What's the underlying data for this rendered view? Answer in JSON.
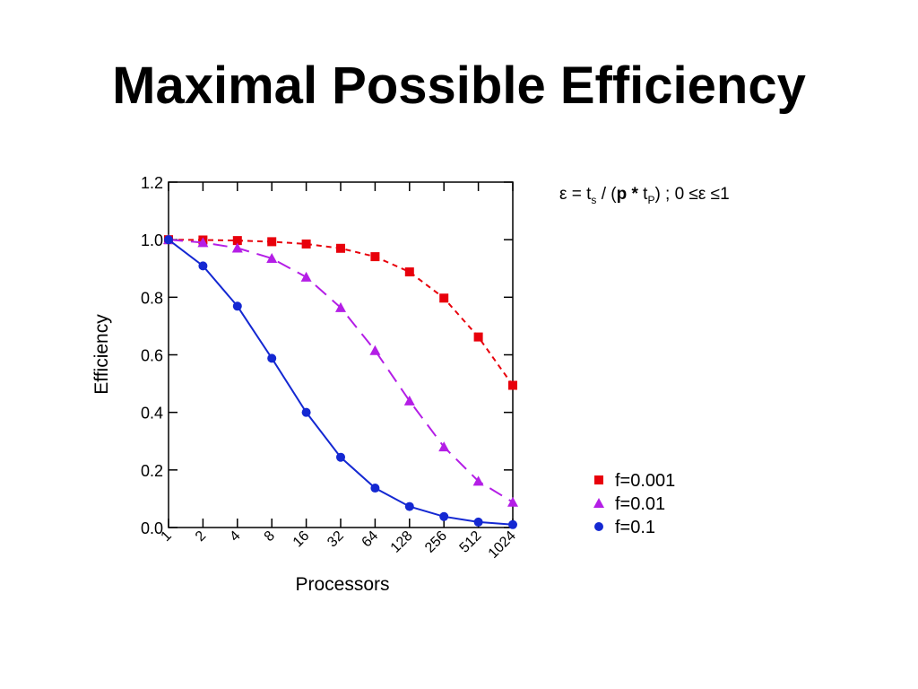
{
  "slide": {
    "title": "Maximal Possible Efficiency"
  },
  "formula": {
    "eps": "ε",
    "eq": " = t",
    "s_sub": "s",
    "mid": " / (",
    "p_bold": "p *",
    "t": " t",
    "P_sub": "P",
    "rest": ") ; 0 ≤ε ≤1"
  },
  "chart_data": {
    "type": "line",
    "title": "",
    "xlabel": "Processors",
    "ylabel": "Efficiency",
    "x_scale": "log2",
    "categories": [
      "1",
      "2",
      "4",
      "8",
      "16",
      "32",
      "64",
      "128",
      "256",
      "512",
      "1024"
    ],
    "ylim": [
      0,
      1.2
    ],
    "yticks": [
      "0.0",
      "0.2",
      "0.4",
      "0.6",
      "0.8",
      "1.0",
      "1.2"
    ],
    "legend_position": "bottom-right",
    "series": [
      {
        "name": "f=0.001",
        "color": "#e8000b",
        "marker": "square",
        "line_style": "dashed",
        "values": [
          1.0,
          0.999,
          0.997,
          0.993,
          0.985,
          0.97,
          0.941,
          0.888,
          0.797,
          0.662,
          0.494
        ]
      },
      {
        "name": "f=0.01",
        "color": "#b41ee6",
        "marker": "triangle",
        "line_style": "long-dashed",
        "values": [
          1.0,
          0.99,
          0.971,
          0.935,
          0.87,
          0.764,
          0.615,
          0.44,
          0.28,
          0.161,
          0.088
        ]
      },
      {
        "name": "f=0.1",
        "color": "#1428d2",
        "marker": "circle",
        "line_style": "solid",
        "values": [
          1.0,
          0.909,
          0.769,
          0.588,
          0.4,
          0.244,
          0.137,
          0.073,
          0.038,
          0.019,
          0.01
        ]
      }
    ]
  }
}
